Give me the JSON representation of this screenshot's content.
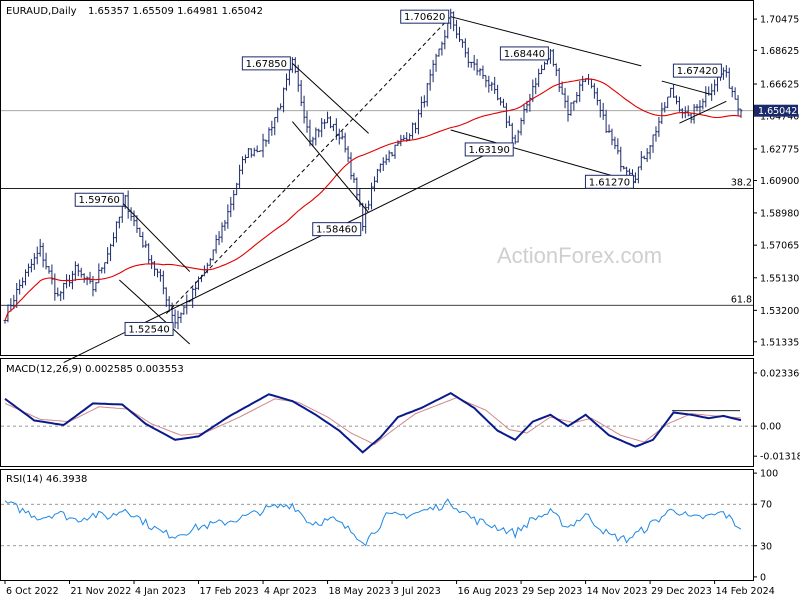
{
  "header": {
    "symbol": "EURAUD,Daily",
    "ohlc": "1.65357 1.65509 1.64981 1.65042"
  },
  "watermark": "ActionForex.com",
  "colors": {
    "bar": "#1b2a6b",
    "sma": "#e00000",
    "macd_line": "#0a1a8c",
    "macd_signal": "#d08a8a",
    "rsi_line": "#1e88e5",
    "last_price_tag": "#1b2a6b"
  },
  "chart_data": [
    {
      "type": "candlestick",
      "title": "EURAUD,Daily",
      "ylim": [
        1.5055,
        1.7155
      ],
      "y_ticks": [
        "1.70475",
        "1.68625",
        "1.66625",
        "1.64740",
        "1.62775",
        "1.60900",
        "1.58980",
        "1.57065",
        "1.55130",
        "1.53200",
        "1.51335"
      ],
      "last_price": "1.65042",
      "x_labels": [
        "6 Oct 2022",
        "21 Nov 2022",
        "4 Jan 2023",
        "17 Feb 2023",
        "4 Apr 2023",
        "18 May 2023",
        "3 Jul 2023",
        "16 Aug 2023",
        "29 Sep 2023",
        "14 Nov 2023",
        "29 Dec 2023",
        "14 Feb 2024"
      ],
      "anchors": [
        {
          "i": 0,
          "v": 1.529
        },
        {
          "i": 6,
          "v": 1.55
        },
        {
          "i": 12,
          "v": 1.568
        },
        {
          "i": 18,
          "v": 1.54
        },
        {
          "i": 24,
          "v": 1.556
        },
        {
          "i": 30,
          "v": 1.545
        },
        {
          "i": 36,
          "v": 1.571
        },
        {
          "i": 41,
          "v": 1.5976
        },
        {
          "i": 47,
          "v": 1.572
        },
        {
          "i": 53,
          "v": 1.55
        },
        {
          "i": 58,
          "v": 1.5254
        },
        {
          "i": 64,
          "v": 1.542
        },
        {
          "i": 70,
          "v": 1.562
        },
        {
          "i": 76,
          "v": 1.59
        },
        {
          "i": 82,
          "v": 1.625
        },
        {
          "i": 88,
          "v": 1.63
        },
        {
          "i": 94,
          "v": 1.655
        },
        {
          "i": 98,
          "v": 1.6785
        },
        {
          "i": 104,
          "v": 1.635
        },
        {
          "i": 110,
          "v": 1.645
        },
        {
          "i": 116,
          "v": 1.63
        },
        {
          "i": 122,
          "v": 1.5846
        },
        {
          "i": 128,
          "v": 1.62
        },
        {
          "i": 134,
          "v": 1.63
        },
        {
          "i": 140,
          "v": 1.642
        },
        {
          "i": 146,
          "v": 1.675
        },
        {
          "i": 152,
          "v": 1.7062
        },
        {
          "i": 158,
          "v": 1.68
        },
        {
          "i": 164,
          "v": 1.67
        },
        {
          "i": 170,
          "v": 1.65
        },
        {
          "i": 174,
          "v": 1.6319
        },
        {
          "i": 180,
          "v": 1.665
        },
        {
          "i": 186,
          "v": 1.6844
        },
        {
          "i": 192,
          "v": 1.65
        },
        {
          "i": 198,
          "v": 1.672
        },
        {
          "i": 204,
          "v": 1.645
        },
        {
          "i": 210,
          "v": 1.62
        },
        {
          "i": 215,
          "v": 1.6127
        },
        {
          "i": 221,
          "v": 1.635
        },
        {
          "i": 227,
          "v": 1.662
        },
        {
          "i": 233,
          "v": 1.645
        },
        {
          "i": 239,
          "v": 1.66
        },
        {
          "i": 245,
          "v": 1.6742
        },
        {
          "i": 251,
          "v": 1.6504
        }
      ],
      "level_labels": [
        {
          "text": "1.70620",
          "i": 152,
          "v": 1.7062,
          "pos": "left"
        },
        {
          "text": "1.67850",
          "i": 98,
          "v": 1.6785,
          "pos": "left"
        },
        {
          "text": "1.68440",
          "i": 186,
          "v": 1.6844,
          "pos": "left"
        },
        {
          "text": "1.67420",
          "i": 245,
          "v": 1.6742,
          "pos": "left"
        },
        {
          "text": "1.63190",
          "i": 174,
          "v": 1.6319,
          "pos": "below-left"
        },
        {
          "text": "1.61270",
          "i": 215,
          "v": 1.6127,
          "pos": "below-left"
        },
        {
          "text": "1.59760",
          "i": 41,
          "v": 1.5976,
          "pos": "left"
        },
        {
          "text": "1.58460",
          "i": 122,
          "v": 1.5846,
          "pos": "below-left"
        },
        {
          "text": "1.52540",
          "i": 58,
          "v": 1.5254,
          "pos": "below-left"
        }
      ],
      "fib_levels": [
        {
          "label": "38.2",
          "v": 1.6043
        },
        {
          "label": "61.8",
          "v": 1.535
        }
      ],
      "trendlines": [
        {
          "i1": 20,
          "v1": 1.501,
          "i2": 165,
          "v2": 1.6253,
          "style": "solid"
        },
        {
          "i1": 55,
          "v1": 1.53,
          "i2": 152,
          "v2": 1.7062,
          "style": "dashed"
        },
        {
          "i1": 152,
          "v1": 1.7062,
          "i2": 217,
          "v2": 1.677,
          "style": "solid"
        },
        {
          "i1": 152,
          "v1": 1.639,
          "i2": 215,
          "v2": 1.608,
          "style": "solid"
        },
        {
          "i1": 98,
          "v1": 1.6785,
          "i2": 124,
          "v2": 1.637,
          "style": "solid"
        },
        {
          "i1": 98,
          "v1": 1.644,
          "i2": 124,
          "v2": 1.59,
          "style": "solid"
        },
        {
          "i1": 39,
          "v1": 1.5976,
          "i2": 63,
          "v2": 1.555,
          "style": "solid"
        },
        {
          "i1": 39,
          "v1": 1.55,
          "i2": 63,
          "v2": 1.512,
          "style": "solid"
        },
        {
          "i1": 224,
          "v1": 1.668,
          "i2": 241,
          "v2": 1.66,
          "style": "solid"
        },
        {
          "i1": 230,
          "v1": 1.643,
          "i2": 246,
          "v2": 1.656,
          "style": "solid"
        }
      ]
    },
    {
      "type": "line",
      "title": "MACD(12,26,9) 0.002585 0.003553",
      "ylim": [
        -0.0175,
        0.0295
      ],
      "y_ticks": [
        "0.023366",
        "0.00",
        "-0.013186"
      ],
      "series": [
        {
          "name": "MACD",
          "anchors": [
            {
              "i": 0,
              "v": 0.012
            },
            {
              "i": 10,
              "v": 0.0025
            },
            {
              "i": 20,
              "v": 0.0005
            },
            {
              "i": 30,
              "v": 0.01
            },
            {
              "i": 40,
              "v": 0.0095
            },
            {
              "i": 48,
              "v": 0.001
            },
            {
              "i": 58,
              "v": -0.006
            },
            {
              "i": 66,
              "v": -0.0045
            },
            {
              "i": 76,
              "v": 0.004
            },
            {
              "i": 90,
              "v": 0.014
            },
            {
              "i": 98,
              "v": 0.011
            },
            {
              "i": 106,
              "v": 0.005
            },
            {
              "i": 114,
              "v": -0.002
            },
            {
              "i": 122,
              "v": -0.0115
            },
            {
              "i": 128,
              "v": -0.005
            },
            {
              "i": 134,
              "v": 0.004
            },
            {
              "i": 142,
              "v": 0.008
            },
            {
              "i": 152,
              "v": 0.0145
            },
            {
              "i": 160,
              "v": 0.008
            },
            {
              "i": 168,
              "v": -0.002
            },
            {
              "i": 174,
              "v": -0.006
            },
            {
              "i": 180,
              "v": 0.002
            },
            {
              "i": 186,
              "v": 0.005
            },
            {
              "i": 192,
              "v": 0.0
            },
            {
              "i": 198,
              "v": 0.005
            },
            {
              "i": 206,
              "v": -0.004
            },
            {
              "i": 215,
              "v": -0.009
            },
            {
              "i": 221,
              "v": -0.006
            },
            {
              "i": 228,
              "v": 0.006
            },
            {
              "i": 234,
              "v": 0.005
            },
            {
              "i": 240,
              "v": 0.0035
            },
            {
              "i": 245,
              "v": 0.0045
            },
            {
              "i": 251,
              "v": 0.0026
            }
          ]
        },
        {
          "name": "Signal",
          "anchors": [
            {
              "i": 0,
              "v": 0.01
            },
            {
              "i": 12,
              "v": 0.003
            },
            {
              "i": 22,
              "v": 0.002
            },
            {
              "i": 32,
              "v": 0.0085
            },
            {
              "i": 42,
              "v": 0.0075
            },
            {
              "i": 50,
              "v": 0.001
            },
            {
              "i": 60,
              "v": -0.004
            },
            {
              "i": 68,
              "v": -0.003
            },
            {
              "i": 80,
              "v": 0.004
            },
            {
              "i": 92,
              "v": 0.012
            },
            {
              "i": 100,
              "v": 0.0105
            },
            {
              "i": 110,
              "v": 0.004
            },
            {
              "i": 118,
              "v": -0.003
            },
            {
              "i": 126,
              "v": -0.008
            },
            {
              "i": 132,
              "v": -0.002
            },
            {
              "i": 140,
              "v": 0.0055
            },
            {
              "i": 154,
              "v": 0.0125
            },
            {
              "i": 164,
              "v": 0.007
            },
            {
              "i": 172,
              "v": -0.0015
            },
            {
              "i": 178,
              "v": -0.003
            },
            {
              "i": 186,
              "v": 0.004
            },
            {
              "i": 194,
              "v": 0.0015
            },
            {
              "i": 200,
              "v": 0.0035
            },
            {
              "i": 210,
              "v": -0.004
            },
            {
              "i": 218,
              "v": -0.007
            },
            {
              "i": 226,
              "v": 0.001
            },
            {
              "i": 234,
              "v": 0.0055
            },
            {
              "i": 242,
              "v": 0.0045
            },
            {
              "i": 251,
              "v": 0.0036
            }
          ]
        }
      ]
    },
    {
      "type": "line",
      "title": "RSI(14) 46.3938",
      "ylim": [
        -3,
        103
      ],
      "y_ticks": [
        "100",
        "70",
        "30",
        "0"
      ],
      "series": [
        {
          "name": "RSI",
          "anchors": [
            {
              "i": 0,
              "v": 72
            },
            {
              "i": 6,
              "v": 64
            },
            {
              "i": 12,
              "v": 57
            },
            {
              "i": 18,
              "v": 62
            },
            {
              "i": 24,
              "v": 55
            },
            {
              "i": 30,
              "v": 60
            },
            {
              "i": 36,
              "v": 58
            },
            {
              "i": 41,
              "v": 66
            },
            {
              "i": 48,
              "v": 52
            },
            {
              "i": 54,
              "v": 42
            },
            {
              "i": 58,
              "v": 40
            },
            {
              "i": 66,
              "v": 48
            },
            {
              "i": 74,
              "v": 52
            },
            {
              "i": 82,
              "v": 58
            },
            {
              "i": 90,
              "v": 66
            },
            {
              "i": 98,
              "v": 70
            },
            {
              "i": 104,
              "v": 52
            },
            {
              "i": 112,
              "v": 55
            },
            {
              "i": 118,
              "v": 44
            },
            {
              "i": 123,
              "v": 34
            },
            {
              "i": 130,
              "v": 58
            },
            {
              "i": 138,
              "v": 60
            },
            {
              "i": 146,
              "v": 66
            },
            {
              "i": 152,
              "v": 72
            },
            {
              "i": 160,
              "v": 55
            },
            {
              "i": 168,
              "v": 48
            },
            {
              "i": 174,
              "v": 42
            },
            {
              "i": 180,
              "v": 56
            },
            {
              "i": 186,
              "v": 62
            },
            {
              "i": 192,
              "v": 48
            },
            {
              "i": 198,
              "v": 60
            },
            {
              "i": 206,
              "v": 40
            },
            {
              "i": 212,
              "v": 36
            },
            {
              "i": 218,
              "v": 46
            },
            {
              "i": 224,
              "v": 58
            },
            {
              "i": 228,
              "v": 66
            },
            {
              "i": 234,
              "v": 56
            },
            {
              "i": 240,
              "v": 58
            },
            {
              "i": 245,
              "v": 62
            },
            {
              "i": 251,
              "v": 46
            }
          ]
        }
      ],
      "guide_levels": [
        70,
        30
      ]
    }
  ]
}
